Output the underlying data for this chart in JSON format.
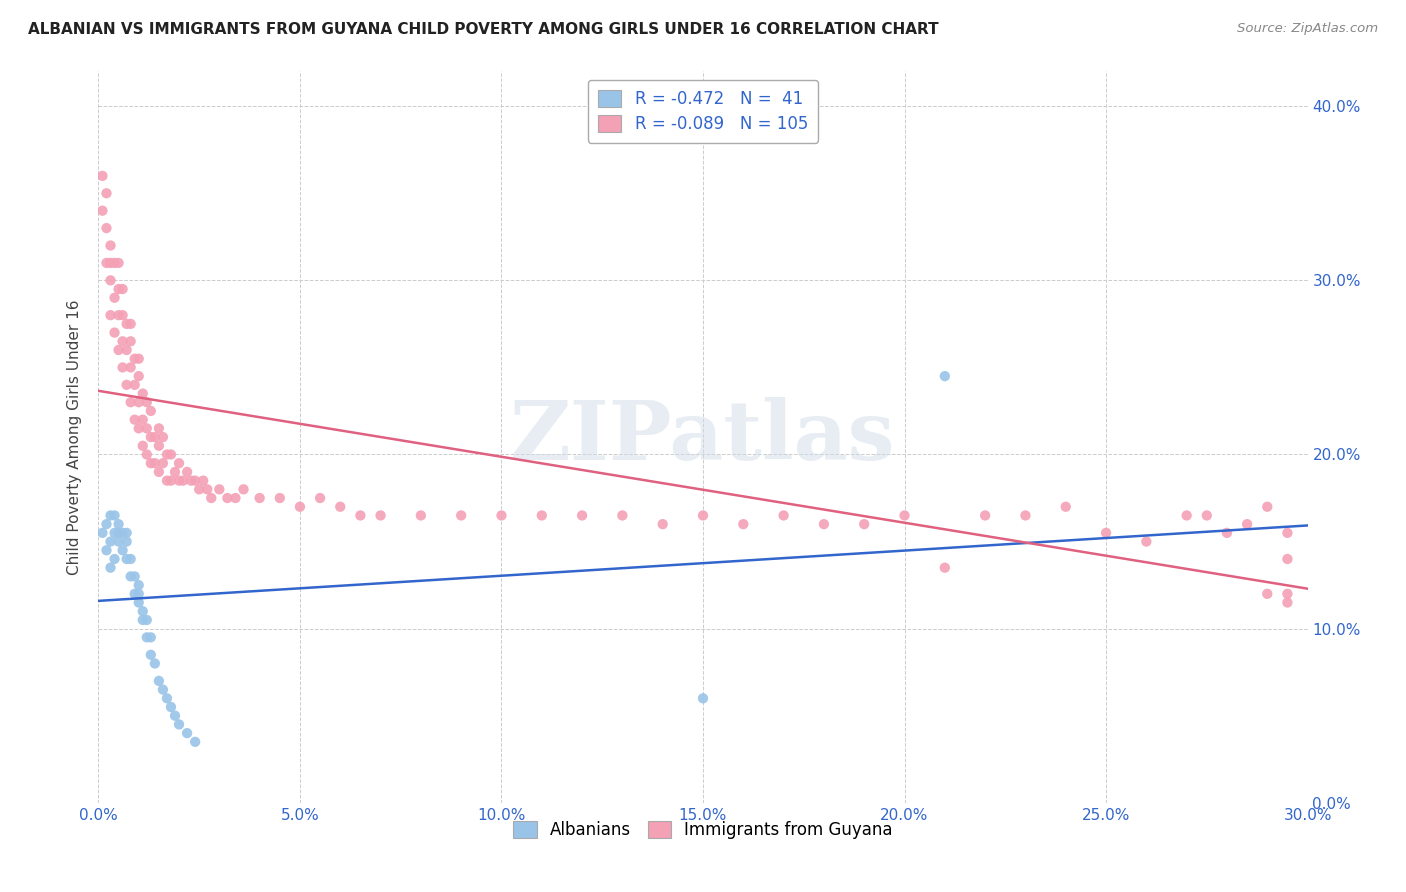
{
  "title": "ALBANIAN VS IMMIGRANTS FROM GUYANA CHILD POVERTY AMONG GIRLS UNDER 16 CORRELATION CHART",
  "source": "Source: ZipAtlas.com",
  "xlim": [
    0.0,
    0.3
  ],
  "ylim": [
    0.0,
    0.42
  ],
  "watermark_text": "ZIPatlas",
  "legend_r1": "R = -0.472",
  "legend_n1": "N =  41",
  "legend_r2": "R = -0.089",
  "legend_n2": "N = 105",
  "legend_label1": "Albanians",
  "legend_label2": "Immigrants from Guyana",
  "color_blue": "#99C4E8",
  "color_pink": "#F4A0B5",
  "color_blue_line": "#3366CC",
  "color_pink_line": "#E06080",
  "ylabel": "Child Poverty Among Girls Under 16",
  "albanians_x": [
    0.001,
    0.002,
    0.002,
    0.003,
    0.003,
    0.003,
    0.004,
    0.004,
    0.004,
    0.005,
    0.005,
    0.005,
    0.006,
    0.006,
    0.007,
    0.007,
    0.007,
    0.008,
    0.008,
    0.009,
    0.009,
    0.01,
    0.01,
    0.01,
    0.011,
    0.011,
    0.012,
    0.012,
    0.013,
    0.013,
    0.014,
    0.015,
    0.016,
    0.017,
    0.018,
    0.019,
    0.02,
    0.022,
    0.024,
    0.15,
    0.21
  ],
  "albanians_y": [
    0.155,
    0.145,
    0.16,
    0.135,
    0.15,
    0.165,
    0.14,
    0.155,
    0.165,
    0.15,
    0.155,
    0.16,
    0.145,
    0.155,
    0.14,
    0.15,
    0.155,
    0.13,
    0.14,
    0.12,
    0.13,
    0.115,
    0.12,
    0.125,
    0.105,
    0.11,
    0.095,
    0.105,
    0.085,
    0.095,
    0.08,
    0.07,
    0.065,
    0.06,
    0.055,
    0.05,
    0.045,
    0.04,
    0.035,
    0.06,
    0.245
  ],
  "guyana_x": [
    0.001,
    0.001,
    0.002,
    0.002,
    0.002,
    0.003,
    0.003,
    0.003,
    0.003,
    0.004,
    0.004,
    0.004,
    0.005,
    0.005,
    0.005,
    0.005,
    0.006,
    0.006,
    0.006,
    0.006,
    0.007,
    0.007,
    0.007,
    0.008,
    0.008,
    0.008,
    0.008,
    0.009,
    0.009,
    0.009,
    0.01,
    0.01,
    0.01,
    0.01,
    0.011,
    0.011,
    0.011,
    0.012,
    0.012,
    0.012,
    0.013,
    0.013,
    0.013,
    0.014,
    0.014,
    0.015,
    0.015,
    0.015,
    0.016,
    0.016,
    0.017,
    0.017,
    0.018,
    0.018,
    0.019,
    0.02,
    0.02,
    0.021,
    0.022,
    0.023,
    0.024,
    0.025,
    0.026,
    0.027,
    0.028,
    0.03,
    0.032,
    0.034,
    0.036,
    0.04,
    0.045,
    0.05,
    0.055,
    0.06,
    0.065,
    0.07,
    0.08,
    0.09,
    0.1,
    0.11,
    0.12,
    0.13,
    0.14,
    0.15,
    0.16,
    0.17,
    0.18,
    0.19,
    0.2,
    0.21,
    0.22,
    0.23,
    0.24,
    0.25,
    0.26,
    0.27,
    0.275,
    0.28,
    0.285,
    0.29,
    0.295,
    0.295,
    0.295,
    0.295,
    0.29
  ],
  "guyana_y": [
    0.34,
    0.36,
    0.31,
    0.33,
    0.35,
    0.28,
    0.3,
    0.31,
    0.32,
    0.27,
    0.29,
    0.31,
    0.26,
    0.28,
    0.295,
    0.31,
    0.25,
    0.265,
    0.28,
    0.295,
    0.24,
    0.26,
    0.275,
    0.23,
    0.25,
    0.265,
    0.275,
    0.22,
    0.24,
    0.255,
    0.215,
    0.23,
    0.245,
    0.255,
    0.205,
    0.22,
    0.235,
    0.2,
    0.215,
    0.23,
    0.195,
    0.21,
    0.225,
    0.195,
    0.21,
    0.19,
    0.205,
    0.215,
    0.195,
    0.21,
    0.185,
    0.2,
    0.185,
    0.2,
    0.19,
    0.185,
    0.195,
    0.185,
    0.19,
    0.185,
    0.185,
    0.18,
    0.185,
    0.18,
    0.175,
    0.18,
    0.175,
    0.175,
    0.18,
    0.175,
    0.175,
    0.17,
    0.175,
    0.17,
    0.165,
    0.165,
    0.165,
    0.165,
    0.165,
    0.165,
    0.165,
    0.165,
    0.16,
    0.165,
    0.16,
    0.165,
    0.16,
    0.16,
    0.165,
    0.135,
    0.165,
    0.165,
    0.17,
    0.155,
    0.15,
    0.165,
    0.165,
    0.155,
    0.16,
    0.17,
    0.14,
    0.155,
    0.12,
    0.115,
    0.12
  ]
}
